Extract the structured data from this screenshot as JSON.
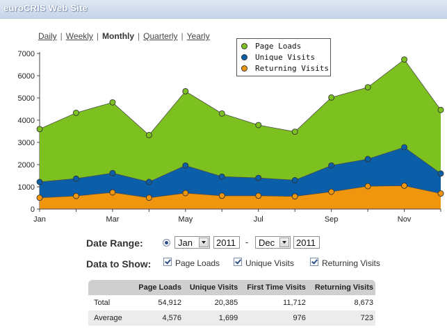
{
  "window": {
    "title": "euroCRIS Web Site"
  },
  "periods": {
    "items": [
      {
        "label": "Daily",
        "active": false
      },
      {
        "label": "Weekly",
        "active": false
      },
      {
        "label": "Monthly",
        "active": true
      },
      {
        "label": "Quarterly",
        "active": false
      },
      {
        "label": "Yearly",
        "active": false
      }
    ],
    "separator": "|"
  },
  "colors": {
    "page_loads": "#7dc120",
    "unique_visits": "#0a5fa8",
    "returning_visits": "#f0960e",
    "grid": "#d8d8d8"
  },
  "chart_data": {
    "type": "area",
    "stacked": false,
    "x": [
      "Jan",
      "Feb",
      "Mar",
      "Apr",
      "May",
      "Jun",
      "Jul",
      "Aug",
      "Sep",
      "Oct",
      "Nov",
      "Dec"
    ],
    "x_tick_labels": [
      "Jan",
      "Mar",
      "May",
      "Jul",
      "Sep",
      "Nov"
    ],
    "y_ticks": [
      0,
      1000,
      2000,
      3000,
      4000,
      5000,
      6000,
      7000
    ],
    "ylim": [
      0,
      7000
    ],
    "grid": false,
    "legend_position": "top-right",
    "series": [
      {
        "name": "Page Loads",
        "color": "#7dc120",
        "values": [
          3600,
          4330,
          4800,
          3330,
          5300,
          4300,
          3780,
          3480,
          5020,
          5480,
          6730,
          4460
        ]
      },
      {
        "name": "Unique Visits",
        "color": "#0a5fa8",
        "values": [
          1220,
          1370,
          1620,
          1220,
          1960,
          1460,
          1400,
          1300,
          1960,
          2250,
          2780,
          1600
        ]
      },
      {
        "name": "Returning Visits",
        "color": "#f0960e",
        "values": [
          510,
          590,
          750,
          510,
          720,
          600,
          600,
          570,
          780,
          1030,
          1050,
          700
        ]
      }
    ]
  },
  "controls": {
    "date_range_label": "Date Range:",
    "from_month": "Jan",
    "from_year": "2011",
    "dash": "-",
    "to_month": "Dec",
    "to_year": "2011",
    "data_to_show_label": "Data to Show:",
    "checkboxes": [
      {
        "label": "Page Loads",
        "checked": true
      },
      {
        "label": "Unique Visits",
        "checked": true
      },
      {
        "label": "Returning Visits",
        "checked": true
      }
    ]
  },
  "stats_table": {
    "headers": [
      "",
      "Page Loads",
      "Unique Visits",
      "First Time Visits",
      "Returning Visits"
    ],
    "rows": [
      {
        "label": "Total",
        "values": [
          "54,912",
          "20,385",
          "11,712",
          "8,673"
        ]
      },
      {
        "label": "Average",
        "values": [
          "4,576",
          "1,699",
          "976",
          "723"
        ]
      }
    ]
  }
}
